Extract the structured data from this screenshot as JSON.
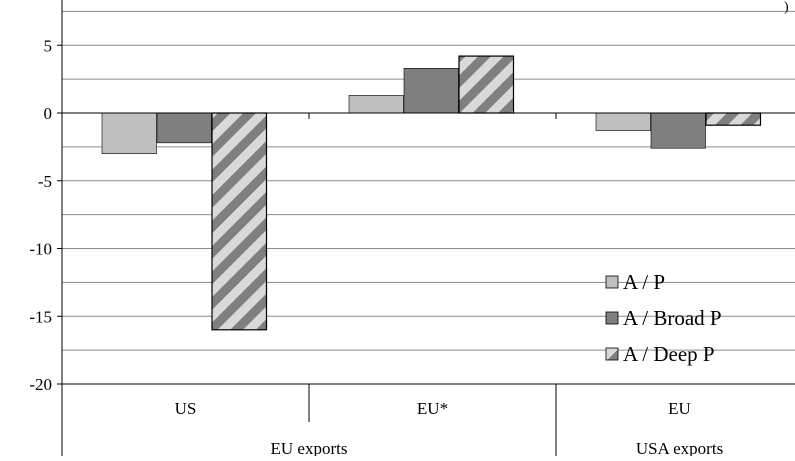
{
  "chart_data": {
    "type": "bar",
    "title": "",
    "xlabel": "",
    "ylabel": "",
    "ylim": [
      -20,
      5
    ],
    "y_ticks": [
      5,
      0,
      -5,
      -10,
      -15,
      -20
    ],
    "y_tick_labels": [
      "5",
      "0",
      "-5",
      "-10",
      "-15",
      "-20"
    ],
    "grid": "horizontal minor and major gridlines",
    "legend_position": "bottom-right, inside plot",
    "categories": [
      "US",
      "EU*",
      "EU"
    ],
    "groups": [
      {
        "label": "EU exports",
        "categories": [
          "US",
          "EU*"
        ]
      },
      {
        "label": "USA exports",
        "categories": [
          "EU"
        ]
      }
    ],
    "series": [
      {
        "name": "A / P",
        "values": [
          -3.0,
          1.3,
          -1.3
        ],
        "color": "#bfbfbf",
        "pattern": "solid"
      },
      {
        "name": "A / Broad P",
        "values": [
          -2.2,
          3.3,
          -2.6
        ],
        "color": "#7f7f7f",
        "pattern": "solid"
      },
      {
        "name": "A / Deep P",
        "values": [
          -16.0,
          4.2,
          -0.9
        ],
        "color": "#d9d9d9",
        "pattern": "diagonal-stripes",
        "stripe_color": "#7f7f7f"
      }
    ],
    "corner_mark": ")"
  }
}
